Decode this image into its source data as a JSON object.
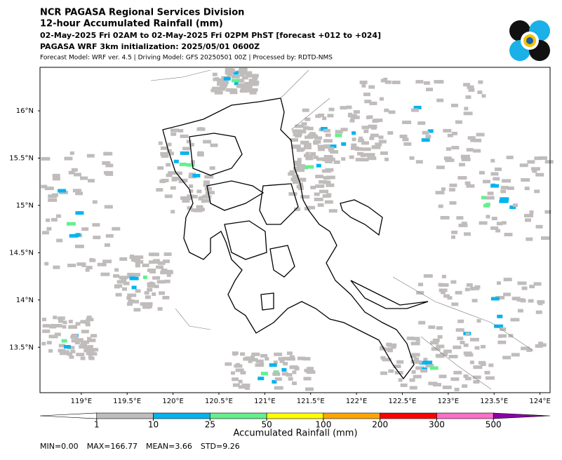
{
  "chart_data": {
    "type": "raster-map",
    "title_lines": [
      "NCR PAGASA Regional Services Division",
      "12-hour Accumulated Rainfall (mm)",
      "02-May-2025 Fri 02AM to 02-May-2025 Fri 02PM PhST [forecast +012 to +024]",
      "PAGASA WRF 3km initialization: 2025/05/01 0600Z",
      "Forecast Model: WRF ver. 4.5 | Driving Model: GFS 20250501 00Z | Processed by: RDTD-NMS"
    ],
    "xlim": [
      118.55,
      124.11
    ],
    "ylim": [
      13.02,
      16.46
    ],
    "xticks": [
      {
        "value": 119,
        "label": "119°E"
      },
      {
        "value": 119.5,
        "label": "119.5°E"
      },
      {
        "value": 120,
        "label": "120°E"
      },
      {
        "value": 120.5,
        "label": "120.5°E"
      },
      {
        "value": 121,
        "label": "121°E"
      },
      {
        "value": 121.5,
        "label": "121.5°E"
      },
      {
        "value": 122,
        "label": "122°E"
      },
      {
        "value": 122.5,
        "label": "122.5°E"
      },
      {
        "value": 123,
        "label": "123°E"
      },
      {
        "value": 123.5,
        "label": "123.5°E"
      },
      {
        "value": 124,
        "label": "124°E"
      }
    ],
    "yticks": [
      {
        "value": 13.5,
        "label": "13.5°N"
      },
      {
        "value": 14,
        "label": "14°N"
      },
      {
        "value": 14.5,
        "label": "14.5°N"
      },
      {
        "value": 15,
        "label": "15°N"
      },
      {
        "value": 15.5,
        "label": "15.5°N"
      },
      {
        "value": 16,
        "label": "16°N"
      }
    ],
    "colorbar": {
      "label": "Accumulated Rainfall (mm)",
      "levels": [
        1,
        10,
        25,
        50,
        100,
        200,
        300,
        500
      ],
      "colors": [
        "#c0bcbc",
        "#00b4f0",
        "#64f08c",
        "#ffff00",
        "#ffa500",
        "#ff0000",
        "#ff6ec8"
      ],
      "under_color": "#ffffff",
      "over_color": "#8c00a8"
    },
    "stats": [
      "MIN=0.00",
      "MAX=166.77",
      "MEAN=3.66",
      "STD=9.26"
    ]
  }
}
